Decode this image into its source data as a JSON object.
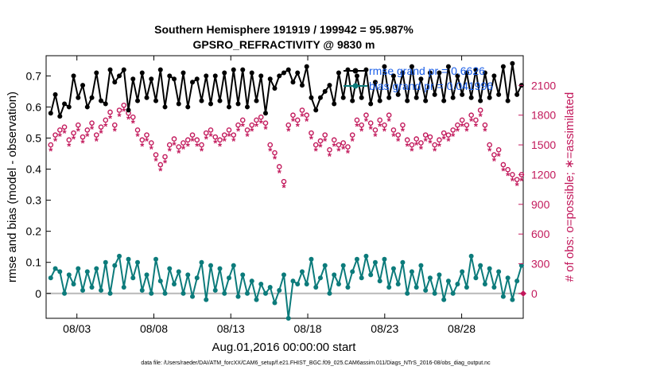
{
  "chart_data": {
    "type": "line",
    "title_line1": "Southern Hemisphere 191919 / 199942 = 95.987%",
    "title_line2": "GPSRO_REFRACTIVITY @ 9830 m",
    "xlabel": "Aug.01,2016 00:00:00 start",
    "ylabel_left": "rmse and bias (model - observation)",
    "ylabel_right": "# of obs: o=possible; ∗=assimilated",
    "footnote": "data file: /Users/raeder/DAI/ATM_forcXX/CAM6_setup/f.e21.FHIST_BGC.f09_025.CAM6assim.011/Diags_NTrS_2016-08/obs_diag_output.nc",
    "x_ticks": [
      "08/03",
      "08/08",
      "08/13",
      "08/18",
      "08/23",
      "08/28"
    ],
    "x_tick_days": [
      3,
      8,
      13,
      18,
      23,
      28
    ],
    "x_range": [
      1.0,
      32.0
    ],
    "y_left_ticks": [
      "0",
      "0.1",
      "0.2",
      "0.3",
      "0.4",
      "0.5",
      "0.6",
      "0.7"
    ],
    "y_left_range": [
      -0.08,
      0.765
    ],
    "y_right_ticks": [
      "0",
      "300",
      "600",
      "900",
      "1200",
      "1500",
      "1800",
      "2100"
    ],
    "y_right_range": [
      -250,
      2400
    ],
    "legend": [
      {
        "label": "rmse grand pr = 0.6626",
        "color": "#000000"
      },
      {
        "label": "bias grand pr = 0.041996",
        "color": "#0c7b7b"
      }
    ],
    "colors": {
      "rmse": "#000000",
      "bias": "#0c7b7b",
      "obs": "#c2185b",
      "zero": "#b8b8b8"
    },
    "series": [
      {
        "name": "rmse",
        "axis": "left",
        "values": [
          0.58,
          0.64,
          0.57,
          0.61,
          0.6,
          0.7,
          0.63,
          0.67,
          0.6,
          0.63,
          0.71,
          0.62,
          0.61,
          0.72,
          0.68,
          0.7,
          0.72,
          0.59,
          0.69,
          0.62,
          0.71,
          0.63,
          0.69,
          0.62,
          0.72,
          0.6,
          0.7,
          0.69,
          0.61,
          0.71,
          0.6,
          0.68,
          0.69,
          0.62,
          0.7,
          0.61,
          0.7,
          0.62,
          0.71,
          0.6,
          0.72,
          0.61,
          0.72,
          0.6,
          0.71,
          0.62,
          0.7,
          0.58,
          0.69,
          0.66,
          0.7,
          0.71,
          0.72,
          0.68,
          0.71,
          0.67,
          0.73,
          0.63,
          0.59,
          0.63,
          0.65,
          0.67,
          0.61,
          0.71,
          0.63,
          0.72,
          0.62,
          0.7,
          0.63,
          0.72,
          0.61,
          0.68,
          0.62,
          0.73,
          0.63,
          0.7,
          0.64,
          0.71,
          0.62,
          0.73,
          0.63,
          0.69,
          0.62,
          0.71,
          0.64,
          0.71,
          0.62,
          0.73,
          0.63,
          0.7,
          0.64,
          0.71,
          0.63,
          0.72,
          0.62,
          0.71,
          0.63,
          0.7,
          0.64,
          0.73,
          0.62,
          0.74,
          0.64,
          0.67
        ]
      },
      {
        "name": "bias",
        "axis": "left",
        "values": [
          0.05,
          0.08,
          0.07,
          0.0,
          0.06,
          0.03,
          0.08,
          0.01,
          0.07,
          0.02,
          0.08,
          0.01,
          0.1,
          0.0,
          0.09,
          0.12,
          0.02,
          0.11,
          0.05,
          0.1,
          0.01,
          0.06,
          0.0,
          0.11,
          0.04,
          0.0,
          0.08,
          0.03,
          0.07,
          0.0,
          0.06,
          -0.01,
          0.05,
          0.1,
          -0.02,
          0.09,
          0.01,
          0.08,
          0.0,
          0.05,
          0.09,
          -0.01,
          0.06,
          0.0,
          0.04,
          -0.02,
          0.03,
          0.0,
          0.02,
          -0.03,
          0.01,
          0.06,
          -0.08,
          0.04,
          0.03,
          0.07,
          0.03,
          0.11,
          0.02,
          0.05,
          0.09,
          0.0,
          0.06,
          0.03,
          0.09,
          0.02,
          0.07,
          0.11,
          0.05,
          0.12,
          0.06,
          0.1,
          0.04,
          0.11,
          0.02,
          0.08,
          0.03,
          0.1,
          0.0,
          0.07,
          0.02,
          0.09,
          0.01,
          0.05,
          0.0,
          0.06,
          -0.02,
          0.04,
          0.0,
          0.03,
          0.07,
          0.02,
          0.12,
          0.05,
          0.09,
          0.03,
          0.08,
          0.02,
          0.07,
          -0.01,
          0.05,
          -0.02,
          0.04,
          0.09
        ]
      },
      {
        "name": "obs_possible",
        "axis": "right",
        "values": [
          1500,
          1600,
          1650,
          1680,
          1550,
          1620,
          1700,
          1580,
          1650,
          1720,
          1600,
          1680,
          1750,
          1830,
          1700,
          1850,
          1900,
          1820,
          1780,
          1650,
          1550,
          1600,
          1520,
          1400,
          1300,
          1380,
          1500,
          1560,
          1480,
          1520,
          1550,
          1600,
          1550,
          1500,
          1620,
          1650,
          1580,
          1550,
          1600,
          1650,
          1600,
          1700,
          1750,
          1650,
          1700,
          1750,
          1780,
          1720,
          1500,
          1420,
          1280,
          1130,
          1700,
          1800,
          1750,
          1850,
          1800,
          1620,
          1500,
          1540,
          1600,
          1450,
          1550,
          1500,
          1520,
          1480,
          1600,
          1750,
          1700,
          1800,
          1720,
          1650,
          1750,
          1700,
          1800,
          1650,
          1600,
          1700,
          1550,
          1500,
          1560,
          1520,
          1600,
          1580,
          1500,
          1550,
          1620,
          1600,
          1650,
          1700,
          1750,
          1700,
          1800,
          1750,
          1850,
          1700,
          1500,
          1400,
          1450,
          1300,
          1250,
          1200,
          1150,
          1200
        ]
      },
      {
        "name": "obs_assimilated",
        "axis": "right",
        "values": [
          1440,
          1540,
          1590,
          1620,
          1490,
          1560,
          1640,
          1520,
          1590,
          1660,
          1540,
          1620,
          1690,
          1770,
          1640,
          1790,
          1840,
          1760,
          1720,
          1590,
          1490,
          1540,
          1460,
          1340,
          1240,
          1320,
          1440,
          1500,
          1420,
          1460,
          1490,
          1540,
          1490,
          1440,
          1560,
          1590,
          1520,
          1490,
          1540,
          1590,
          1540,
          1640,
          1690,
          1590,
          1640,
          1690,
          1720,
          1660,
          1440,
          1360,
          1220,
          1070,
          1640,
          1740,
          1690,
          1790,
          1740,
          1560,
          1440,
          1480,
          1540,
          1390,
          1490,
          1440,
          1460,
          1420,
          1540,
          1690,
          1640,
          1740,
          1660,
          1590,
          1690,
          1640,
          1740,
          1590,
          1540,
          1640,
          1490,
          1440,
          1500,
          1460,
          1540,
          1520,
          1440,
          1490,
          1560,
          1540,
          1590,
          1640,
          1690,
          1640,
          1740,
          1690,
          1790,
          1640,
          1440,
          1340,
          1390,
          1240,
          1190,
          1140,
          1090,
          1140
        ]
      }
    ]
  }
}
